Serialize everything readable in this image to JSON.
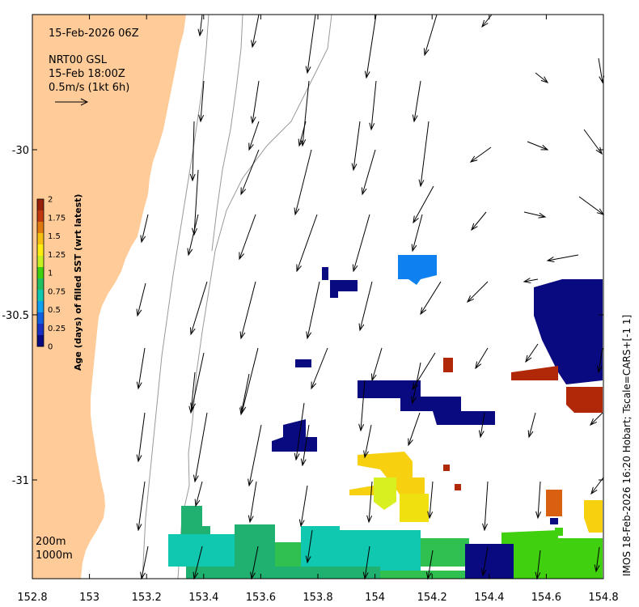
{
  "map": {
    "date_label": "15-Feb-2026 06Z",
    "source_label": "NRT00 GSL",
    "current_time_label": "15-Feb 18:00Z",
    "scale_label": "0.5m/s (1kt 6h)",
    "contour_label_200": "200m",
    "contour_label_1000": "1000m",
    "credit": "IMOS 18-Feb-2026 16:20 Hobart; Tscale=CARS+[-1 1]",
    "land_color": "#ffcc99",
    "ocean_color": "#ffffff",
    "contour_color": "#999999",
    "arrow_color": "#000000"
  },
  "axes": {
    "x_ticks": [
      "152.8",
      "153",
      "153.2",
      "153.4",
      "153.6",
      "153.8",
      "154",
      "154.2",
      "154.4",
      "154.6",
      "154.8"
    ],
    "y_ticks": [
      "-30",
      "-30.5",
      "-31"
    ]
  },
  "colorbar": {
    "title": "Age (days) of filled SST (wrt latest)",
    "ticks": [
      "2",
      "1.75",
      "1.5",
      "1.25",
      "1",
      "0.75",
      "0.5",
      "0.25",
      "0"
    ],
    "colors": [
      "#99200b",
      "#c03810",
      "#e07a10",
      "#f7c010",
      "#ffee10",
      "#c8f020",
      "#40d010",
      "#20c060",
      "#10c8b0",
      "#0fa0f0",
      "#1060e0",
      "#1a30c0",
      "#0a0a80"
    ]
  }
}
